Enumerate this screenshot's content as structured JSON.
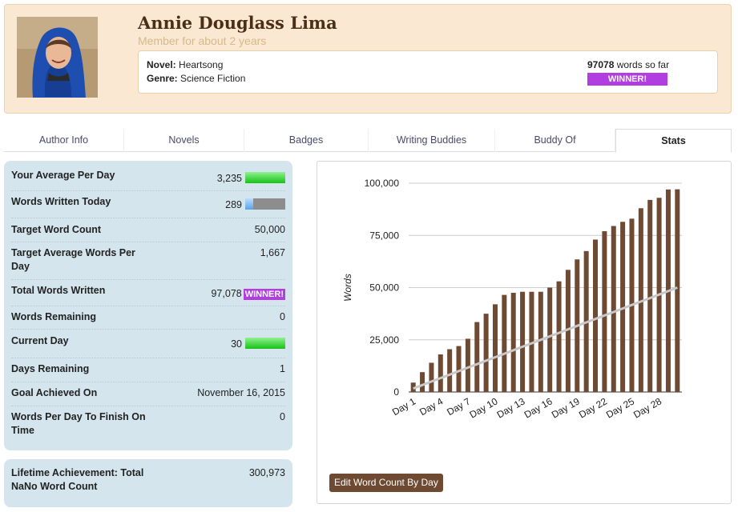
{
  "profile": {
    "name": "Annie Douglass Lima",
    "member_since": "Member for about 2 years",
    "novel_label": "Novel:",
    "novel_value": "Heartsong",
    "genre_label": "Genre:",
    "genre_value": "Science Fiction",
    "word_count": "97078",
    "word_count_suffix": "words so far",
    "winner_badge": "WINNER!"
  },
  "tabs": [
    {
      "label": "Author Info",
      "active": false
    },
    {
      "label": "Novels",
      "active": false
    },
    {
      "label": "Badges",
      "active": false
    },
    {
      "label": "Writing Buddies",
      "active": false
    },
    {
      "label": "Buddy Of",
      "active": false
    },
    {
      "label": "Stats",
      "active": true
    }
  ],
  "stats": {
    "rows": [
      {
        "label": "Your Average Per Day",
        "value": "3,235",
        "indicator": "green-bar"
      },
      {
        "label": "Words Written Today",
        "value": "289",
        "indicator": "progress-bar",
        "progress": 0.19
      },
      {
        "label": "Target Word Count",
        "value": "50,000"
      },
      {
        "label": "Target Average Words Per Day",
        "value": "1,667"
      },
      {
        "label": "Total Words Written",
        "value": "97,078",
        "badge": "WINNER!"
      },
      {
        "label": "Words Remaining",
        "value": "0"
      },
      {
        "label": "Current Day",
        "value": "30",
        "indicator": "green-bar"
      },
      {
        "label": "Days Remaining",
        "value": "1"
      },
      {
        "label": "Goal Achieved On",
        "value": "November 16, 2015"
      },
      {
        "label": "Words Per Day To Finish On Time",
        "value": "0"
      }
    ]
  },
  "lifetime": {
    "label": "Lifetime Achievement: Total NaNo Word Count",
    "value": "300,973"
  },
  "edit_button": "Edit Word Count By Day",
  "colors": {
    "bar": "#6e4a33",
    "target_line": "#c8c8c8",
    "winner": "#b23de0",
    "panel": "#d5e5ee",
    "header": "#fbe8d2"
  },
  "chart_data": {
    "type": "bar",
    "ylabel": "Words",
    "ylim": [
      0,
      100000
    ],
    "yticks": [
      "0",
      "25,000",
      "50,000",
      "75,000",
      "100,000"
    ],
    "ytick_values": [
      0,
      25000,
      50000,
      75000,
      100000
    ],
    "xtick_labels": [
      "Day 1",
      "Day 4",
      "Day 7",
      "Day 10",
      "Day 13",
      "Day 16",
      "Day 19",
      "Day 22",
      "Day 25",
      "Day 28"
    ],
    "categories": [
      "Day 1",
      "Day 2",
      "Day 3",
      "Day 4",
      "Day 5",
      "Day 6",
      "Day 7",
      "Day 8",
      "Day 9",
      "Day 10",
      "Day 11",
      "Day 12",
      "Day 13",
      "Day 14",
      "Day 15",
      "Day 16",
      "Day 17",
      "Day 18",
      "Day 19",
      "Day 20",
      "Day 21",
      "Day 22",
      "Day 23",
      "Day 24",
      "Day 25",
      "Day 26",
      "Day 27",
      "Day 28",
      "Day 29",
      "Day 30"
    ],
    "series": [
      {
        "values": [
          4500,
          9500,
          14000,
          18000,
          20500,
          22000,
          25500,
          33500,
          37500,
          42000,
          46500,
          47500,
          48000,
          48000,
          48000,
          50000,
          53000,
          58500,
          63500,
          67500,
          73000,
          77000,
          79500,
          81500,
          83000,
          88000,
          92000,
          93000,
          97000,
          97078
        ]
      },
      {
        "values": [
          1667,
          3333,
          5000,
          6667,
          8333,
          10000,
          11667,
          13333,
          15000,
          16667,
          18333,
          20000,
          21667,
          23333,
          25000,
          26667,
          28333,
          30000,
          31667,
          33333,
          35000,
          36667,
          38333,
          40000,
          41667,
          43333,
          45000,
          46667,
          48333,
          50000
        ]
      }
    ],
    "grid": true,
    "legend": "none"
  }
}
